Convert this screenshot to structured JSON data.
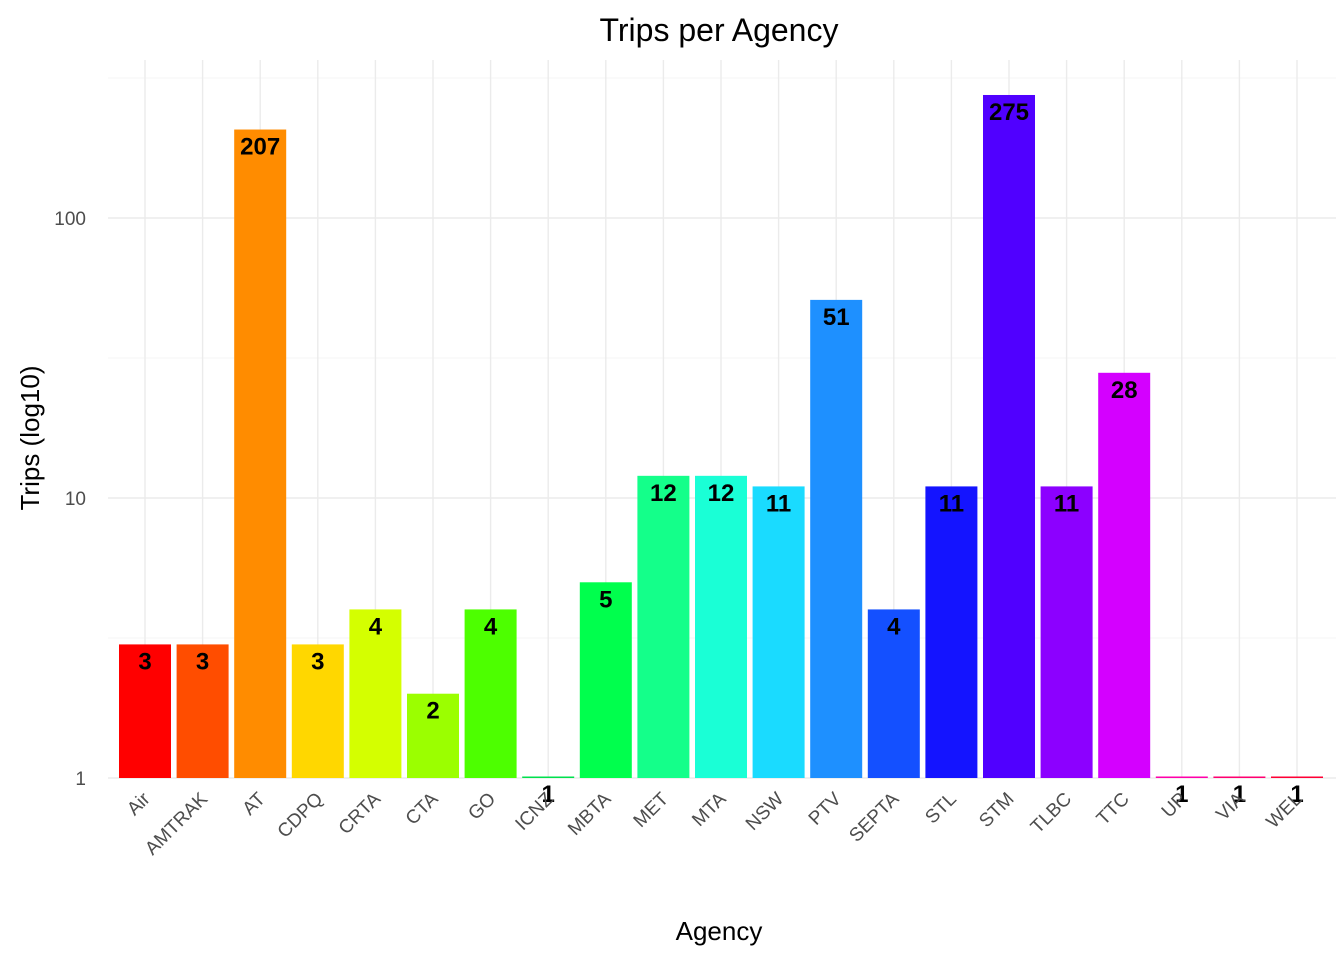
{
  "chart_data": {
    "type": "bar",
    "title": "Trips per Agency",
    "xlabel": "Agency",
    "ylabel": "Trips (log10)",
    "y_scale": "log10",
    "ylim": [
      1,
      300
    ],
    "y_ticks": [
      1,
      10,
      100
    ],
    "grid": true,
    "legend": "none",
    "categories": [
      "Air",
      "AMTRAK",
      "AT",
      "CDPQ",
      "CRTA",
      "CTA",
      "GO",
      "ICNZ",
      "MBTA",
      "MET",
      "MTA",
      "NSW",
      "PTV",
      "SEPTA",
      "STL",
      "STM",
      "TLBC",
      "TTC",
      "UP",
      "VIA",
      "WEL"
    ],
    "values": [
      3,
      3,
      207,
      3,
      4,
      2,
      4,
      1,
      5,
      12,
      12,
      11,
      51,
      4,
      11,
      275,
      11,
      28,
      1,
      1,
      1
    ],
    "colors": [
      "#FF0000",
      "#FF4D00",
      "#FF8C00",
      "#FFD700",
      "#D4FF00",
      "#9BFF00",
      "#4DFF00",
      "#00E04D",
      "#00FF4D",
      "#14FF8A",
      "#1AFFD6",
      "#1ADBFF",
      "#1E90FF",
      "#1450FF",
      "#1414FF",
      "#5000FF",
      "#8C00FF",
      "#D400FF",
      "#FF00AA",
      "#FF0070",
      "#FF0035"
    ]
  }
}
